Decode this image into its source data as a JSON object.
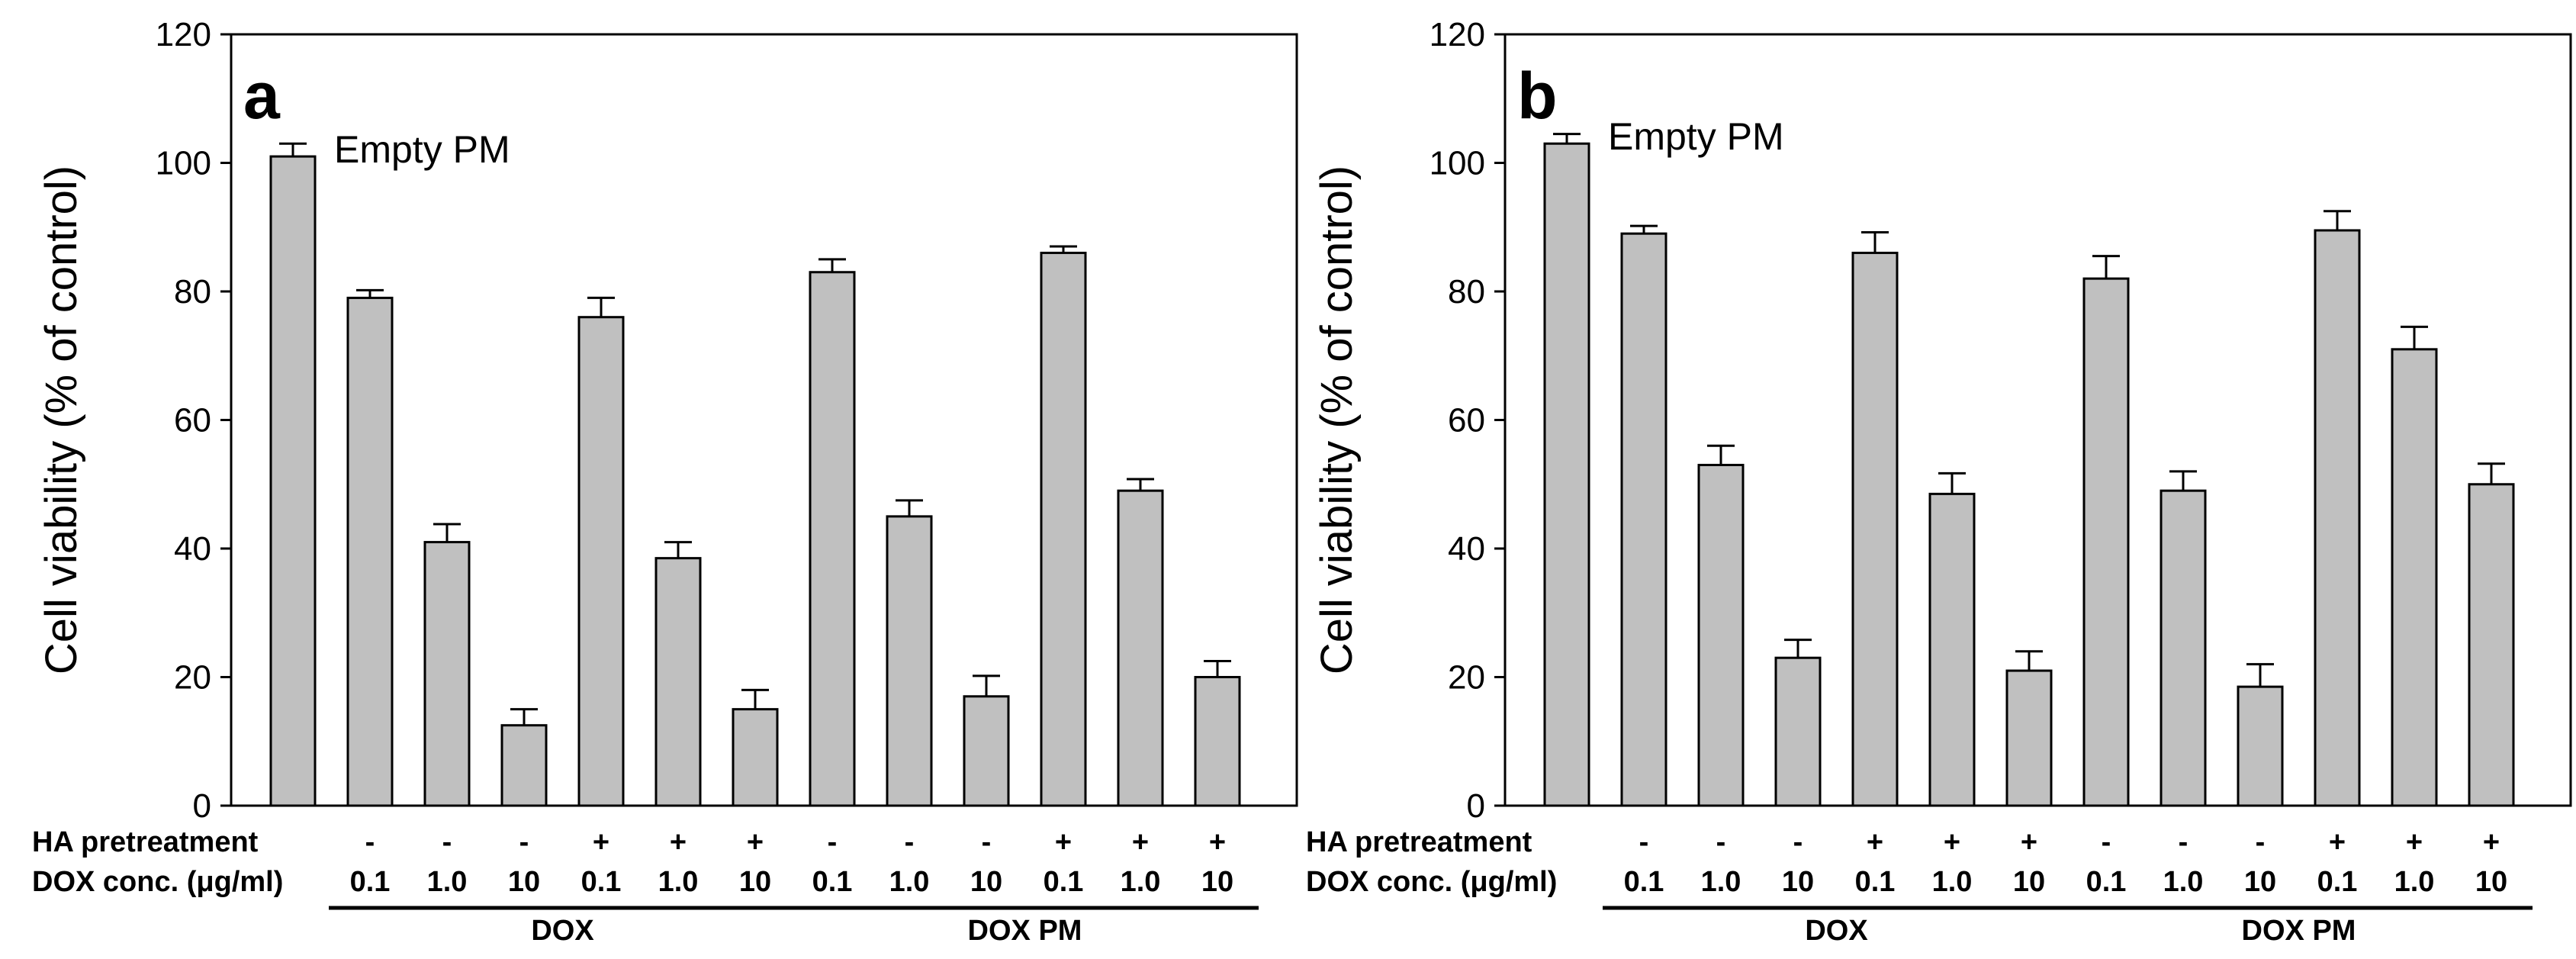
{
  "chart_data": [
    {
      "type": "bar",
      "panel_label": "a",
      "ylabel": "Cell viability (% of control)",
      "ylim": [
        0,
        120
      ],
      "yticks": [
        "0",
        "20",
        "40",
        "60",
        "80",
        "100",
        "120"
      ],
      "annotation": "Empty PM",
      "row_labels": [
        "HA pretreatment",
        "DOX conc. (μg/ml)"
      ],
      "ha_pretreatment": [
        "-",
        "-",
        "-",
        "+",
        "+",
        "+",
        "-",
        "-",
        "-",
        "+",
        "+",
        "+"
      ],
      "dox_conc": [
        "0.1",
        "1.0",
        "10",
        "0.1",
        "1.0",
        "10",
        "0.1",
        "1.0",
        "10",
        "0.1",
        "1.0",
        "10"
      ],
      "groups": [
        {
          "label": "DOX",
          "start": 1,
          "end": 6
        },
        {
          "label": "DOX PM",
          "start": 7,
          "end": 12
        }
      ],
      "values": [
        101,
        79,
        41,
        12.5,
        76,
        38.5,
        15,
        83,
        45,
        17,
        86,
        49,
        20
      ],
      "errors": [
        2,
        1.2,
        2.8,
        2.5,
        3,
        2.5,
        3,
        2,
        2.5,
        3.2,
        1,
        1.8,
        2.5
      ],
      "grid": false
    },
    {
      "type": "bar",
      "panel_label": "b",
      "ylabel": "Cell viability (% of control)",
      "ylim": [
        0,
        120
      ],
      "yticks": [
        "0",
        "20",
        "40",
        "60",
        "80",
        "100",
        "120"
      ],
      "annotation": "Empty PM",
      "row_labels": [
        "HA pretreatment",
        "DOX conc. (μg/ml)"
      ],
      "ha_pretreatment": [
        "-",
        "-",
        "-",
        "+",
        "+",
        "+",
        "-",
        "-",
        "-",
        "+",
        "+",
        "+"
      ],
      "dox_conc": [
        "0.1",
        "1.0",
        "10",
        "0.1",
        "1.0",
        "10",
        "0.1",
        "1.0",
        "10",
        "0.1",
        "1.0",
        "10"
      ],
      "groups": [
        {
          "label": "DOX",
          "start": 1,
          "end": 6
        },
        {
          "label": "DOX PM",
          "start": 7,
          "end": 12
        }
      ],
      "values": [
        103,
        89,
        53,
        23,
        86,
        48.5,
        21,
        82,
        49,
        18.5,
        89.5,
        71,
        50
      ],
      "errors": [
        1.5,
        1.2,
        3,
        2.8,
        3.2,
        3.2,
        3,
        3.5,
        3,
        3.5,
        3,
        3.5,
        3.2
      ],
      "grid": false
    }
  ]
}
